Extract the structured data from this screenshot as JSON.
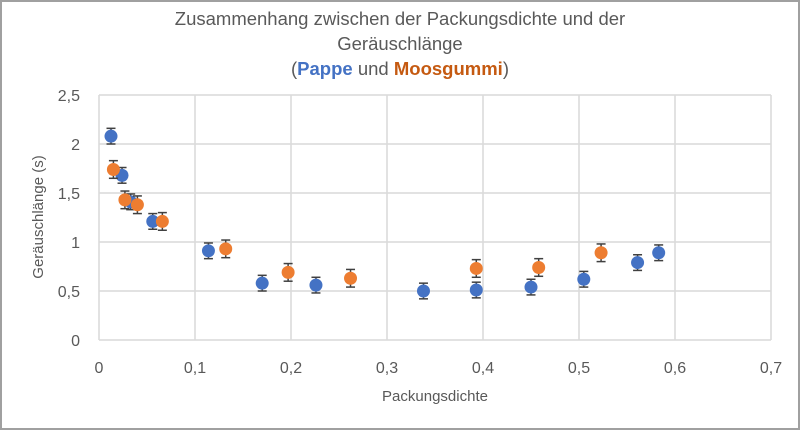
{
  "chart_data": {
    "type": "scatter",
    "title": "Zusammenhang zwischen der Packungsdichte und der Geräuschlänge (Pappe und Moosgummi)",
    "title_lines": {
      "line1": "Zusammenhang zwischen der Packungsdichte und der",
      "line2": "Geräuschlänge",
      "line3_open": "(",
      "line3_pappe": "Pappe",
      "line3_und": " und ",
      "line3_moos": "Moosgummi",
      "line3_close": ")"
    },
    "xlabel": "Packungsdichte",
    "ylabel": "Geräuschlänge (s)",
    "xlim": [
      0,
      0.7
    ],
    "ylim": [
      0,
      2.5
    ],
    "x_ticks": [
      "0",
      "0,1",
      "0,2",
      "0,3",
      "0,4",
      "0,5",
      "0,6",
      "0,7"
    ],
    "y_ticks": [
      "0",
      "0,5",
      "1",
      "1,5",
      "2",
      "2,5"
    ],
    "grid": true,
    "legend": "none (series identified by colored title text)",
    "series": [
      {
        "name": "Pappe",
        "color": "#4472C4",
        "x": [
          0.0125,
          0.024,
          0.033,
          0.056,
          0.114,
          0.17,
          0.226,
          0.338,
          0.393,
          0.45,
          0.505,
          0.561,
          0.583
        ],
        "y": [
          2.08,
          1.68,
          1.41,
          1.21,
          0.91,
          0.58,
          0.56,
          0.5,
          0.51,
          0.54,
          0.62,
          0.79,
          0.89
        ],
        "error": 0.08
      },
      {
        "name": "Moosgummi",
        "color": "#ED7D31",
        "x": [
          0.015,
          0.027,
          0.04,
          0.066,
          0.132,
          0.197,
          0.262,
          0.393,
          0.458,
          0.523
        ],
        "y": [
          1.74,
          1.43,
          1.38,
          1.21,
          0.93,
          0.69,
          0.63,
          0.73,
          0.74,
          0.89
        ],
        "error": 0.09
      }
    ]
  }
}
